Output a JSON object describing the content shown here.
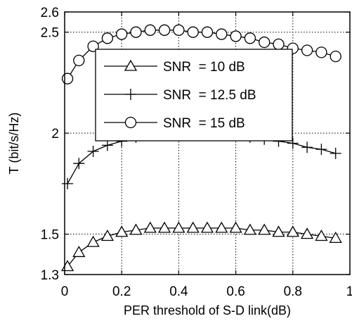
{
  "chart_data": {
    "type": "line",
    "title": "",
    "xlabel": "PER threshold of S-D link(dB)",
    "ylabel": "T (bit/s/Hz)",
    "xlim": [
      0,
      1
    ],
    "ylim": [
      1.3,
      2.6
    ],
    "xticks": [
      0,
      0.2,
      0.4,
      0.6,
      0.8,
      1
    ],
    "xtick_labels": [
      "0",
      "0.2",
      "0.4",
      "0.6",
      "0.8",
      "1"
    ],
    "yticks": [
      1.3,
      1.5,
      2,
      2.5,
      2.6
    ],
    "ytick_labels": [
      "1.3",
      "1.5",
      "2",
      "2.5",
      "2.6"
    ],
    "grid": true,
    "grid_style": "dotted",
    "legend_position": "upper-center",
    "x": [
      0.01,
      0.05,
      0.1,
      0.15,
      0.2,
      0.25,
      0.3,
      0.35,
      0.4,
      0.45,
      0.5,
      0.55,
      0.6,
      0.65,
      0.7,
      0.75,
      0.8,
      0.85,
      0.9,
      0.95
    ],
    "series": [
      {
        "name": "SNR  = 10 dB",
        "marker": "triangle",
        "values": [
          1.34,
          1.41,
          1.46,
          1.49,
          1.51,
          1.52,
          1.53,
          1.53,
          1.53,
          1.53,
          1.53,
          1.53,
          1.53,
          1.52,
          1.52,
          1.51,
          1.51,
          1.5,
          1.49,
          1.48
        ]
      },
      {
        "name": "SNR  = 12.5 dB",
        "marker": "plus",
        "values": [
          1.75,
          1.85,
          1.91,
          1.94,
          1.96,
          1.98,
          1.99,
          2.0,
          2.0,
          2.0,
          2.0,
          2.0,
          1.99,
          1.98,
          1.97,
          1.96,
          1.95,
          1.93,
          1.92,
          1.9
        ]
      },
      {
        "name": "SNR  = 15 dB",
        "marker": "circle",
        "values": [
          2.27,
          2.36,
          2.43,
          2.47,
          2.49,
          2.5,
          2.51,
          2.51,
          2.51,
          2.5,
          2.5,
          2.49,
          2.48,
          2.47,
          2.45,
          2.44,
          2.42,
          2.41,
          2.4,
          2.38
        ]
      }
    ]
  }
}
